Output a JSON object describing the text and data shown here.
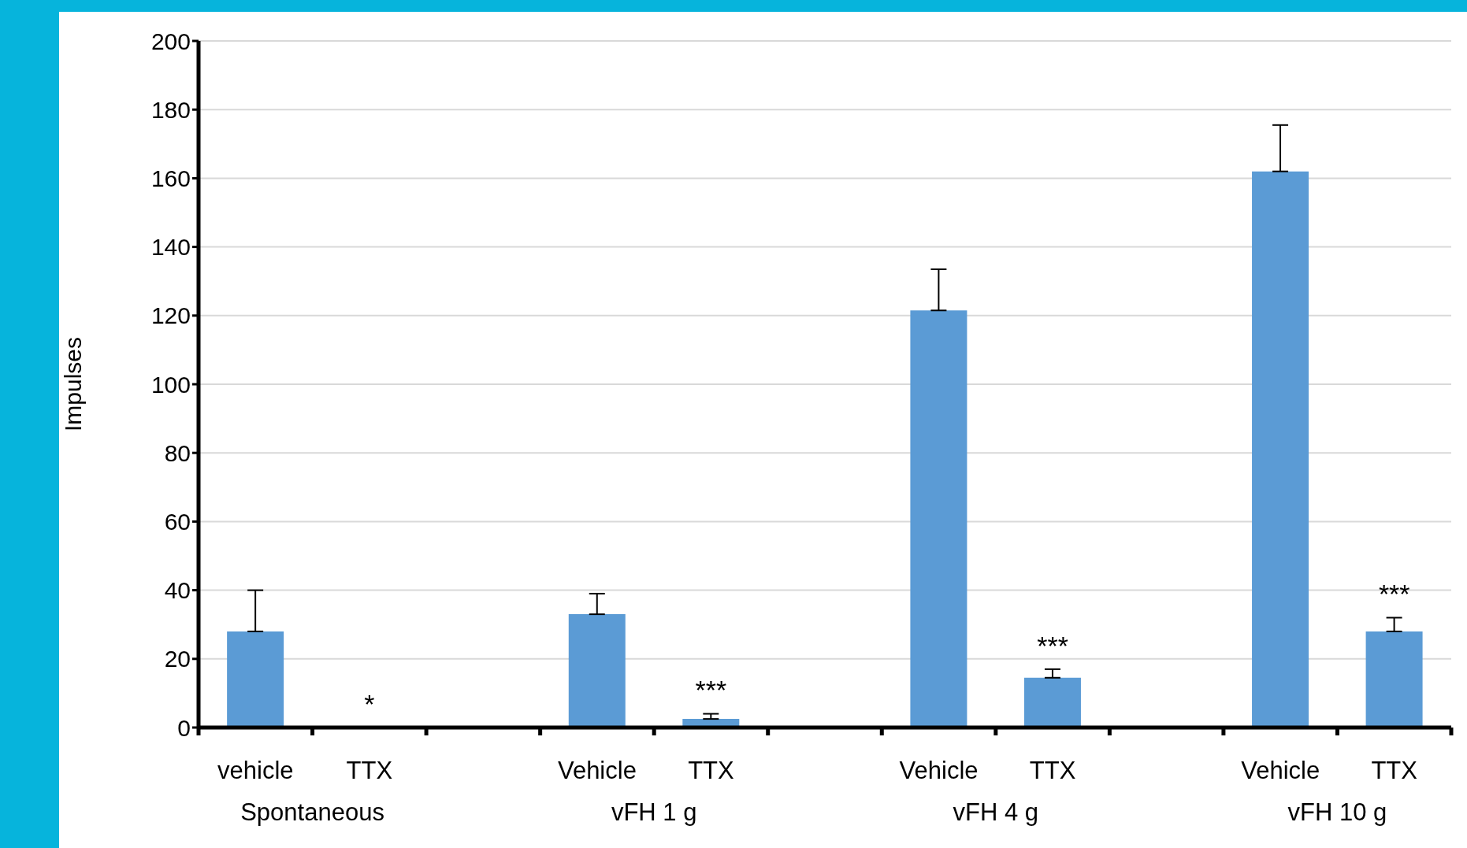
{
  "chart_data": {
    "type": "bar",
    "ylabel": "Impulses",
    "categories": [
      "vehicle",
      "TTX",
      null,
      "Vehicle",
      "TTX",
      null,
      "Vehicle",
      "TTX",
      null,
      "Vehicle",
      "TTX"
    ],
    "values": [
      28,
      null,
      null,
      33,
      2.5,
      null,
      121.5,
      14.5,
      null,
      162,
      28
    ],
    "errors": [
      [
        28,
        40
      ],
      null,
      null,
      [
        33,
        39
      ],
      [
        2.5,
        4
      ],
      null,
      [
        121.5,
        133.5
      ],
      [
        14.5,
        17
      ],
      null,
      [
        162,
        175.5
      ],
      [
        28,
        32
      ]
    ],
    "color": "#5b9bd5",
    "ylim": [
      0,
      200
    ],
    "yticks": [
      0,
      20,
      40,
      60,
      80,
      100,
      120,
      140,
      160,
      180,
      200
    ],
    "grid": "y",
    "annotations": [
      "Spontaneous",
      "vFH 1 g",
      "vFH 4 g",
      "vFH 10 g",
      "*",
      "***",
      "***",
      "***"
    ]
  }
}
